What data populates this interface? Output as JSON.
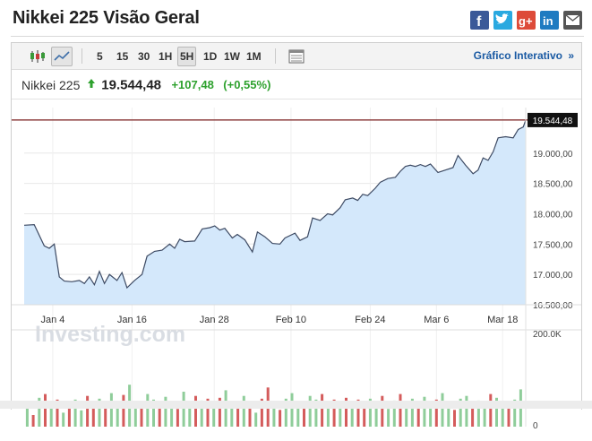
{
  "header": {
    "title": "Nikkei 225 Visão Geral",
    "share_icons": [
      "facebook-icon",
      "twitter-icon",
      "google-plus-icon",
      "linkedin-icon",
      "email-icon"
    ],
    "share_colors": {
      "facebook": "#3b5998",
      "twitter": "#2aa9e0",
      "google_plus": "#dd4b39",
      "linkedin": "#1f7bc1",
      "email": "#555555"
    }
  },
  "toolbar": {
    "chart_type_icons": [
      "candlestick-icon",
      "area-chart-icon"
    ],
    "active_chart_type": "area-chart-icon",
    "intervals": [
      "5",
      "15",
      "30",
      "1H",
      "5H",
      "1D",
      "1W",
      "1M"
    ],
    "active_interval": "5H",
    "table_icon": "table-icon",
    "interactive_link": "Gráfico Interativo",
    "interactive_chevron": "»"
  },
  "quote": {
    "name": "Nikkei 225",
    "price": "19.544,48",
    "change": "+107,48",
    "change_pct": "(+0,55%)",
    "direction": "up",
    "up_color": "#2ea12e"
  },
  "chart_data": {
    "type": "area",
    "watermark": "Investing.com",
    "x_tick_labels": [
      "Jan 4",
      "Jan 16",
      "Jan 28",
      "Feb 10",
      "Feb 24",
      "Mar 6",
      "Mar 18"
    ],
    "y_tick_labels": [
      "19.000,00",
      "18.500,00",
      "18.000,00",
      "17.500,00",
      "17.000,00",
      "16.500,00"
    ],
    "y_ticks": [
      19000,
      18500,
      18000,
      17500,
      17000,
      16500
    ],
    "ylim": [
      16500,
      19750
    ],
    "last_price_label": "19.544,48",
    "last_price": 19544.48,
    "x_range": [
      0,
      100
    ],
    "x_tick_positions": [
      5.7,
      21.5,
      37.9,
      53.2,
      69.0,
      82.2,
      95.4
    ],
    "series": [
      {
        "x": 0,
        "y": 17810
      },
      {
        "x": 2,
        "y": 17820
      },
      {
        "x": 4,
        "y": 17470
      },
      {
        "x": 5,
        "y": 17430
      },
      {
        "x": 6,
        "y": 17500
      },
      {
        "x": 7,
        "y": 16960
      },
      {
        "x": 8,
        "y": 16890
      },
      {
        "x": 9.5,
        "y": 16880
      },
      {
        "x": 11,
        "y": 16900
      },
      {
        "x": 12,
        "y": 16850
      },
      {
        "x": 13,
        "y": 16960
      },
      {
        "x": 14,
        "y": 16830
      },
      {
        "x": 15,
        "y": 17050
      },
      {
        "x": 16,
        "y": 16850
      },
      {
        "x": 17,
        "y": 17000
      },
      {
        "x": 18.5,
        "y": 16900
      },
      {
        "x": 19.5,
        "y": 17030
      },
      {
        "x": 20.5,
        "y": 16780
      },
      {
        "x": 22,
        "y": 16900
      },
      {
        "x": 23.5,
        "y": 17000
      },
      {
        "x": 24.5,
        "y": 17300
      },
      {
        "x": 26,
        "y": 17380
      },
      {
        "x": 27.5,
        "y": 17400
      },
      {
        "x": 29,
        "y": 17500
      },
      {
        "x": 30,
        "y": 17430
      },
      {
        "x": 31,
        "y": 17580
      },
      {
        "x": 32,
        "y": 17540
      },
      {
        "x": 34,
        "y": 17550
      },
      {
        "x": 35.5,
        "y": 17750
      },
      {
        "x": 37,
        "y": 17770
      },
      {
        "x": 38,
        "y": 17800
      },
      {
        "x": 39,
        "y": 17730
      },
      {
        "x": 40,
        "y": 17760
      },
      {
        "x": 41.5,
        "y": 17600
      },
      {
        "x": 42.5,
        "y": 17660
      },
      {
        "x": 44,
        "y": 17570
      },
      {
        "x": 45.5,
        "y": 17370
      },
      {
        "x": 46.5,
        "y": 17700
      },
      {
        "x": 48,
        "y": 17620
      },
      {
        "x": 49.5,
        "y": 17510
      },
      {
        "x": 51,
        "y": 17500
      },
      {
        "x": 52,
        "y": 17600
      },
      {
        "x": 54,
        "y": 17680
      },
      {
        "x": 55,
        "y": 17560
      },
      {
        "x": 56.5,
        "y": 17620
      },
      {
        "x": 57.5,
        "y": 17930
      },
      {
        "x": 59,
        "y": 17890
      },
      {
        "x": 60.5,
        "y": 18000
      },
      {
        "x": 61.5,
        "y": 17980
      },
      {
        "x": 63,
        "y": 18100
      },
      {
        "x": 64,
        "y": 18230
      },
      {
        "x": 65.5,
        "y": 18260
      },
      {
        "x": 66.5,
        "y": 18220
      },
      {
        "x": 67.5,
        "y": 18320
      },
      {
        "x": 68.5,
        "y": 18300
      },
      {
        "x": 70,
        "y": 18420
      },
      {
        "x": 71,
        "y": 18520
      },
      {
        "x": 72.5,
        "y": 18580
      },
      {
        "x": 74,
        "y": 18600
      },
      {
        "x": 75,
        "y": 18700
      },
      {
        "x": 76,
        "y": 18780
      },
      {
        "x": 77,
        "y": 18800
      },
      {
        "x": 78,
        "y": 18780
      },
      {
        "x": 79,
        "y": 18810
      },
      {
        "x": 80,
        "y": 18780
      },
      {
        "x": 81,
        "y": 18820
      },
      {
        "x": 82.5,
        "y": 18680
      },
      {
        "x": 84,
        "y": 18720
      },
      {
        "x": 85.5,
        "y": 18760
      },
      {
        "x": 86.5,
        "y": 18960
      },
      {
        "x": 88,
        "y": 18800
      },
      {
        "x": 89.5,
        "y": 18660
      },
      {
        "x": 90.5,
        "y": 18720
      },
      {
        "x": 91.5,
        "y": 18920
      },
      {
        "x": 92.5,
        "y": 18880
      },
      {
        "x": 93.5,
        "y": 19020
      },
      {
        "x": 94.5,
        "y": 19250
      },
      {
        "x": 96,
        "y": 19270
      },
      {
        "x": 97.5,
        "y": 19250
      },
      {
        "x": 98.5,
        "y": 19390
      },
      {
        "x": 99.5,
        "y": 19430
      },
      {
        "x": 100,
        "y": 19544.48
      }
    ],
    "volume": {
      "max_label": "200.0K",
      "min_label": "0",
      "max": 200000,
      "bars": [
        {
          "x": 0.6,
          "v": 55000,
          "dir": "up"
        },
        {
          "x": 1.8,
          "v": 25000,
          "dir": "down"
        },
        {
          "x": 3.0,
          "v": 62000,
          "dir": "up"
        },
        {
          "x": 4.2,
          "v": 70000,
          "dir": "down"
        },
        {
          "x": 5.4,
          "v": 45000,
          "dir": "up"
        },
        {
          "x": 6.6,
          "v": 58000,
          "dir": "down"
        },
        {
          "x": 7.8,
          "v": 30000,
          "dir": "up"
        },
        {
          "x": 9.0,
          "v": 50000,
          "dir": "down"
        },
        {
          "x": 10.2,
          "v": 58000,
          "dir": "up"
        },
        {
          "x": 11.4,
          "v": 35000,
          "dir": "up"
        },
        {
          "x": 12.6,
          "v": 66000,
          "dir": "down"
        },
        {
          "x": 13.8,
          "v": 48000,
          "dir": "down"
        },
        {
          "x": 15.0,
          "v": 60000,
          "dir": "up"
        },
        {
          "x": 16.2,
          "v": 40000,
          "dir": "down"
        },
        {
          "x": 17.4,
          "v": 72000,
          "dir": "up"
        },
        {
          "x": 18.6,
          "v": 52000,
          "dir": "up"
        },
        {
          "x": 19.8,
          "v": 68000,
          "dir": "down"
        },
        {
          "x": 21.0,
          "v": 90000,
          "dir": "up"
        },
        {
          "x": 22.2,
          "v": 55000,
          "dir": "up"
        },
        {
          "x": 23.4,
          "v": 44000,
          "dir": "down"
        },
        {
          "x": 24.6,
          "v": 70000,
          "dir": "up"
        },
        {
          "x": 25.8,
          "v": 58000,
          "dir": "up"
        },
        {
          "x": 27.0,
          "v": 40000,
          "dir": "down"
        },
        {
          "x": 28.2,
          "v": 64000,
          "dir": "up"
        },
        {
          "x": 29.4,
          "v": 52000,
          "dir": "up"
        },
        {
          "x": 30.6,
          "v": 38000,
          "dir": "down"
        },
        {
          "x": 31.8,
          "v": 75000,
          "dir": "up"
        },
        {
          "x": 33.0,
          "v": 48000,
          "dir": "up"
        },
        {
          "x": 34.2,
          "v": 66000,
          "dir": "down"
        },
        {
          "x": 35.4,
          "v": 56000,
          "dir": "up"
        },
        {
          "x": 36.6,
          "v": 60000,
          "dir": "down"
        },
        {
          "x": 37.8,
          "v": 45000,
          "dir": "up"
        },
        {
          "x": 39.0,
          "v": 62000,
          "dir": "down"
        },
        {
          "x": 40.2,
          "v": 78000,
          "dir": "up"
        },
        {
          "x": 41.4,
          "v": 55000,
          "dir": "up"
        },
        {
          "x": 42.6,
          "v": 42000,
          "dir": "down"
        },
        {
          "x": 43.8,
          "v": 66000,
          "dir": "up"
        },
        {
          "x": 45.0,
          "v": 48000,
          "dir": "down"
        },
        {
          "x": 46.2,
          "v": 30000,
          "dir": "up"
        },
        {
          "x": 47.4,
          "v": 60000,
          "dir": "down"
        },
        {
          "x": 48.6,
          "v": 84000,
          "dir": "down"
        },
        {
          "x": 49.8,
          "v": 52000,
          "dir": "up"
        },
        {
          "x": 51.0,
          "v": 36000,
          "dir": "down"
        },
        {
          "x": 52.2,
          "v": 60000,
          "dir": "up"
        },
        {
          "x": 53.4,
          "v": 72000,
          "dir": "up"
        },
        {
          "x": 54.6,
          "v": 50000,
          "dir": "up"
        },
        {
          "x": 55.8,
          "v": 42000,
          "dir": "down"
        },
        {
          "x": 57.0,
          "v": 66000,
          "dir": "up"
        },
        {
          "x": 58.2,
          "v": 58000,
          "dir": "up"
        },
        {
          "x": 59.4,
          "v": 70000,
          "dir": "down"
        },
        {
          "x": 60.6,
          "v": 44000,
          "dir": "up"
        },
        {
          "x": 61.8,
          "v": 58000,
          "dir": "down"
        },
        {
          "x": 63.0,
          "v": 50000,
          "dir": "up"
        },
        {
          "x": 64.2,
          "v": 62000,
          "dir": "down"
        },
        {
          "x": 65.4,
          "v": 40000,
          "dir": "up"
        },
        {
          "x": 66.6,
          "v": 58000,
          "dir": "down"
        },
        {
          "x": 67.8,
          "v": 46000,
          "dir": "down"
        },
        {
          "x": 69.0,
          "v": 60000,
          "dir": "up"
        },
        {
          "x": 70.2,
          "v": 52000,
          "dir": "up"
        },
        {
          "x": 71.4,
          "v": 66000,
          "dir": "down"
        },
        {
          "x": 72.6,
          "v": 38000,
          "dir": "up"
        },
        {
          "x": 73.8,
          "v": 56000,
          "dir": "up"
        },
        {
          "x": 75.0,
          "v": 70000,
          "dir": "down"
        },
        {
          "x": 76.2,
          "v": 48000,
          "dir": "up"
        },
        {
          "x": 77.4,
          "v": 60000,
          "dir": "up"
        },
        {
          "x": 78.6,
          "v": 45000,
          "dir": "down"
        },
        {
          "x": 79.8,
          "v": 64000,
          "dir": "up"
        },
        {
          "x": 81.0,
          "v": 40000,
          "dir": "up"
        },
        {
          "x": 82.2,
          "v": 58000,
          "dir": "down"
        },
        {
          "x": 83.4,
          "v": 72000,
          "dir": "up"
        },
        {
          "x": 84.6,
          "v": 50000,
          "dir": "up"
        },
        {
          "x": 85.8,
          "v": 36000,
          "dir": "down"
        },
        {
          "x": 87.0,
          "v": 60000,
          "dir": "up"
        },
        {
          "x": 88.2,
          "v": 66000,
          "dir": "up"
        },
        {
          "x": 89.4,
          "v": 44000,
          "dir": "down"
        },
        {
          "x": 90.6,
          "v": 56000,
          "dir": "up"
        },
        {
          "x": 91.8,
          "v": 48000,
          "dir": "up"
        },
        {
          "x": 93.0,
          "v": 70000,
          "dir": "down"
        },
        {
          "x": 94.2,
          "v": 62000,
          "dir": "up"
        },
        {
          "x": 95.4,
          "v": 52000,
          "dir": "up"
        },
        {
          "x": 96.6,
          "v": 40000,
          "dir": "down"
        },
        {
          "x": 97.8,
          "v": 58000,
          "dir": "up"
        },
        {
          "x": 99.0,
          "v": 80000,
          "dir": "up"
        }
      ]
    },
    "colors": {
      "line": "#3d4a63",
      "fill": "#d4e8fb",
      "last_line": "#7a1f1f",
      "vol_up": "#8fcd9a",
      "vol_down": "#d45c5c",
      "grid": "#e8e8e8"
    }
  }
}
